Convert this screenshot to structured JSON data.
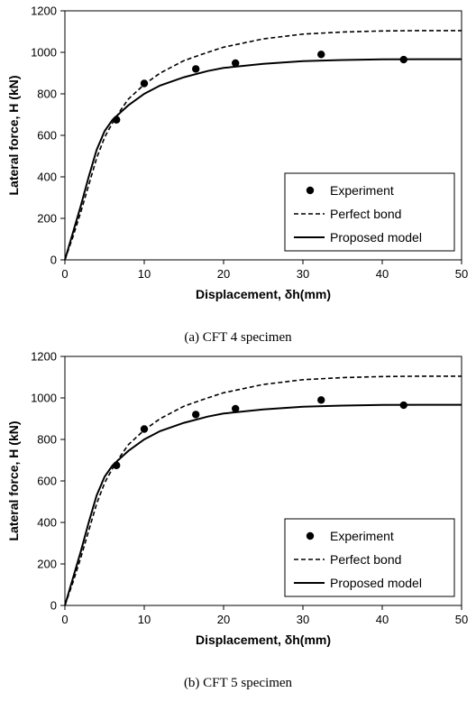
{
  "chart_data": [
    {
      "type": "line",
      "caption": "(a)   CFT 4 specimen",
      "xlabel": "Displacement, δh(mm)",
      "ylabel": "Lateral force, H (kN)",
      "xlim": [
        0,
        50
      ],
      "ylim": [
        0,
        1200
      ],
      "xticks": [
        0,
        10,
        20,
        30,
        40,
        50
      ],
      "yticks": [
        0,
        200,
        400,
        600,
        800,
        1000,
        1200
      ],
      "grid": false,
      "legend_position": "bottom-right",
      "series": [
        {
          "name": "Experiment",
          "style": "marker",
          "x": [
            6.5,
            10.0,
            16.5,
            21.5,
            32.3,
            42.7
          ],
          "y": [
            675,
            850,
            920,
            948,
            990,
            965
          ]
        },
        {
          "name": "Perfect bond",
          "style": "dashed",
          "x": [
            0,
            1,
            2,
            3,
            4,
            5,
            6,
            7,
            8,
            10,
            12,
            15,
            18,
            20,
            25,
            30,
            35,
            40,
            45,
            50
          ],
          "y": [
            0,
            110,
            230,
            360,
            490,
            590,
            660,
            720,
            775,
            845,
            900,
            960,
            1000,
            1025,
            1065,
            1088,
            1098,
            1103,
            1105,
            1105
          ]
        },
        {
          "name": "Proposed model",
          "style": "solid",
          "x": [
            0,
            1,
            2,
            3,
            4,
            5,
            6,
            7,
            8,
            10,
            12,
            15,
            18,
            20,
            25,
            30,
            35,
            40,
            45,
            50
          ],
          "y": [
            0,
            130,
            260,
            400,
            530,
            620,
            675,
            710,
            745,
            800,
            840,
            880,
            910,
            925,
            945,
            958,
            963,
            966,
            967,
            967
          ]
        }
      ]
    },
    {
      "type": "line",
      "caption": "(b)   CFT 5 specimen",
      "xlabel": "Displacement, δh(mm)",
      "ylabel": "Lateral force, H (kN)",
      "xlim": [
        0,
        50
      ],
      "ylim": [
        0,
        1200
      ],
      "xticks": [
        0,
        10,
        20,
        30,
        40,
        50
      ],
      "yticks": [
        0,
        200,
        400,
        600,
        800,
        1000,
        1200
      ],
      "grid": false,
      "legend_position": "bottom-right",
      "series": [
        {
          "name": "Experiment",
          "style": "marker",
          "x": [
            6.5,
            10.0,
            16.5,
            21.5,
            32.3,
            42.7
          ],
          "y": [
            675,
            850,
            920,
            948,
            990,
            965
          ]
        },
        {
          "name": "Perfect bond",
          "style": "dashed",
          "x": [
            0,
            1,
            2,
            3,
            4,
            5,
            6,
            7,
            8,
            10,
            12,
            15,
            18,
            20,
            25,
            30,
            35,
            40,
            45,
            50
          ],
          "y": [
            0,
            110,
            230,
            360,
            490,
            590,
            660,
            720,
            775,
            845,
            900,
            960,
            1000,
            1025,
            1065,
            1088,
            1098,
            1103,
            1105,
            1105
          ]
        },
        {
          "name": "Proposed model",
          "style": "solid",
          "x": [
            0,
            1,
            2,
            3,
            4,
            5,
            6,
            7,
            8,
            10,
            12,
            15,
            18,
            20,
            25,
            30,
            35,
            40,
            45,
            50
          ],
          "y": [
            0,
            130,
            260,
            400,
            530,
            620,
            675,
            710,
            745,
            800,
            840,
            880,
            910,
            925,
            945,
            958,
            963,
            966,
            967,
            967
          ]
        }
      ]
    }
  ]
}
